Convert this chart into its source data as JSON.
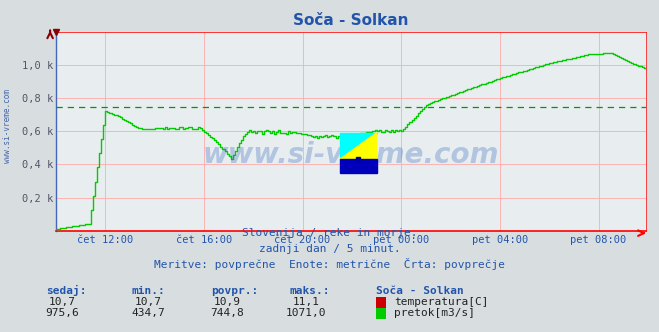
{
  "title": "Soča - Solkan",
  "bg_color": "#d8dde0",
  "plot_bg_color": "#e8eef0",
  "grid_color": "#ffaaaa",
  "avg_line_color": "#009900",
  "avg_line_value": 744.8,
  "ymin": 0,
  "ymax": 1200,
  "ytick_vals": [
    0,
    200,
    400,
    600,
    800,
    1000,
    1200
  ],
  "ytick_labels": [
    "",
    "0,2 k",
    "0,4 k",
    "0,6 k",
    "0,8 k",
    "1,0 k",
    ""
  ],
  "text_color": "#2255aa",
  "line_color": "#00cc00",
  "line_width": 1.0,
  "watermark": "www.si-vreme.com",
  "footer_line1": "Slovenija / reke in morje.",
  "footer_line2": "zadnji dan / 5 minut.",
  "footer_line3": "Meritve: povprečne  Enote: metrične  Črta: povprečje",
  "col_headers": [
    "sedaj:",
    "min.:",
    "povpr.:",
    "maks.:"
  ],
  "row1_vals": [
    "10,7",
    "10,7",
    "10,9",
    "11,1"
  ],
  "row2_vals": [
    "975,6",
    "434,7",
    "744,8",
    "1071,0"
  ],
  "station_label": "Soča - Solkan",
  "legend_temp": "temperatura[C]",
  "legend_flow": "pretok[m3/s]",
  "n_points": 288,
  "xtick_positions": [
    24,
    72,
    120,
    168,
    216,
    264
  ],
  "xtick_labels": [
    "čet 12:00",
    "čet 16:00",
    "čet 20:00",
    "pet 00:00",
    "pet 04:00",
    "pet 08:00"
  ],
  "vgrid_positions": [
    24,
    72,
    120,
    168,
    216,
    264
  ]
}
